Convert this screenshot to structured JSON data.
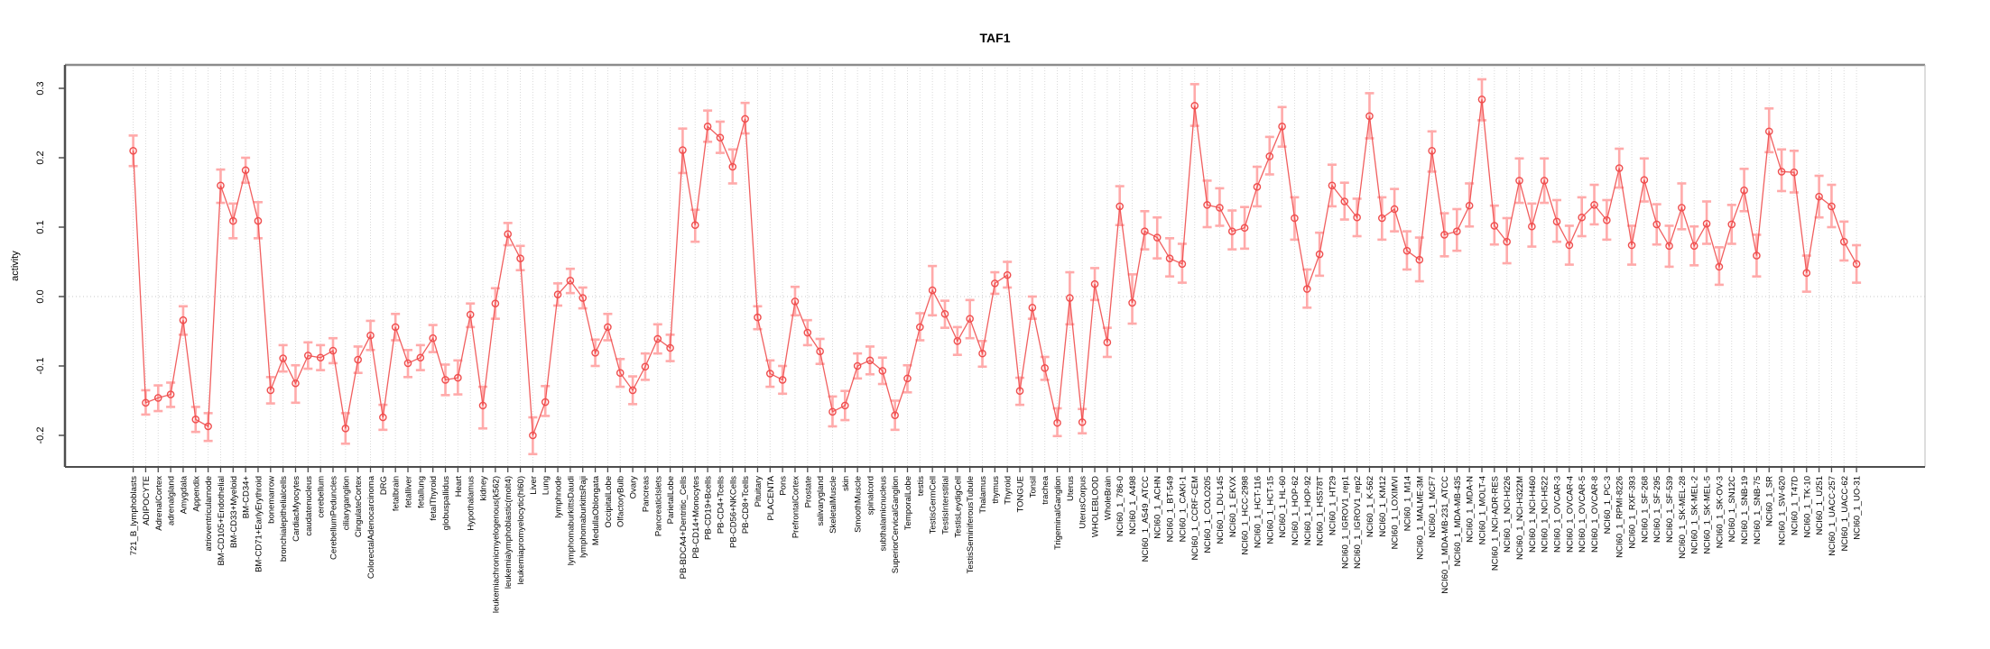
{
  "title": "TAF1",
  "ylabel": "activity",
  "colors": {
    "line": "#ef4e4e",
    "marker": "#ef4e4e",
    "error_bar": "#ffaaaa",
    "grid": "#d9d9d9",
    "zero_line": "#c9c9c9",
    "axis_dark": "#4d4d4d",
    "box_gray": "#8c8c8c",
    "label_text": "#000000"
  },
  "chart_data": {
    "type": "line",
    "title": "TAF1",
    "xlabel": "",
    "ylabel": "activity",
    "ylim": [
      -0.245,
      0.335
    ],
    "y_ticks": [
      0.3,
      0.2,
      0.1,
      0.0,
      -0.1,
      -0.2
    ],
    "y_tick_labels": [
      "0.3",
      "0.2",
      "0.1",
      "0.0",
      "-0.1",
      "-0.2"
    ],
    "grid": "vertical-per-category-plus-zero-line",
    "legend": "none",
    "marker": "open-circle",
    "error_bars": true,
    "categories": [
      "721_B_lymphoblasts",
      "ADIPOCYTE",
      "AdrenalCortex",
      "adrenalgland",
      "Amygdala",
      "Appendix",
      "atrioventricularnode",
      "BM-CD105+Endothelial",
      "BM-CD33+Myeloid",
      "BM-CD34+",
      "BM-CD71+EarlyErythroid",
      "bonemarrow",
      "bronchialepithelialcells",
      "CardiacMyocytes",
      "caudatenucleus",
      "cerebellum",
      "CerebellumPeduncles",
      "ciliaryganglion",
      "CingulateCortex",
      "ColorectalAdenocarcinoma",
      "DRG",
      "fetalbrain",
      "fetalliver",
      "fetallung",
      "fetalThyroid",
      "globuspallidus",
      "Heart",
      "Hypothalamus",
      "kidney",
      "leukemiachronicmyelogenous(k562)",
      "leukemialymphoblastic(molt4)",
      "leukemiapromyelocytic(hl60)",
      "Liver",
      "Lung",
      "lymphnode",
      "lymphomaburkittsDaudi",
      "lymphomaburkittsRaji",
      "MedullaOblongata",
      "OccipitalLobe",
      "OlfactoryBulb",
      "Ovary",
      "Pancreas",
      "PancreaticIslets",
      "ParietalLobe",
      "PB-BDCA4+Dentritic_Cells",
      "PB-CD14+Monocytes",
      "PB-CD19+Bcells",
      "PB-CD4+Tcells",
      "PB-CD56+NKCells",
      "PB-CD8+Tcells",
      "Pituitary",
      "PLACENTA",
      "Pons",
      "PrefrontalCortex",
      "Prostate",
      "salivarygland",
      "SkeletalMuscle",
      "skin",
      "SmoothMuscle",
      "spinalcord",
      "subthalamicnucleus",
      "SuperiorCervicalGanglion",
      "TemporalLobe",
      "testis",
      "TestisGermCell",
      "TestisInterstitial",
      "TestisLeydigCell",
      "TestisSeminiferousTubule",
      "Thalamus",
      "thymus",
      "Thyroid",
      "TONGUE",
      "Tonsil",
      "trachea",
      "TrigeminalGanglion",
      "Uterus",
      "UterusCorpus",
      "WHOLEBLOOD",
      "WholeBrain",
      "NCI60_1_786-0",
      "NCI60_1_A498",
      "NCI60_1_A549_ATCC",
      "NCI60_1_ACHN",
      "NCI60_1_BT-549",
      "NCI60_1_CAKI-1",
      "NCI60_1_CCRF-CEM",
      "NCI60_1_COLO205",
      "NCI60_1_DU-145",
      "NCI60_1_EKVX",
      "NCI60_1_HCC-2998",
      "NCI60_1_HCT-116",
      "NCI60_1_HCT-15",
      "NCI60_1_HL-60",
      "NCI60_1_HOP-62",
      "NCI60_1_HOP-92",
      "NCI60_1_HS578T",
      "NCI60_1_HT29",
      "NCI60_1_IGROV1_rep1",
      "NCI60_1_IGROV1_rep2",
      "NCI60_1_K-562",
      "NCI60_1_KM12",
      "NCI60_1_LOXIMVI",
      "NCI60_1_M14",
      "NCI60_1_MALME-3M",
      "NCI60_1_MCF7",
      "NCI60_1_MDA-MB-231_ATCC",
      "NCI60_1_MDA-MB-435",
      "NCI60_1_MDA-N",
      "NCI60_1_MOLT-4",
      "NCI60_1_NCI-ADR-RES",
      "NCI60_1_NCI-H226",
      "NCI60_1_NCI-H322M",
      "NCI60_1_NCI-H460",
      "NCI60_1_NCI-H522",
      "NCI60_1_OVCAR-3",
      "NCI60_1_OVCAR-4",
      "NCI60_1_OVCAR-5",
      "NCI60_1_OVCAR-8",
      "NCI60_1_PC-3",
      "NCI60_1_RPMI-8226",
      "NCI60_1_RXF-393",
      "NCI60_1_SF-268",
      "NCI60_1_SF-295",
      "NCI60_1_SF-539",
      "NCI60_1_SK-MEL-28",
      "NCI60_1_SK-MEL-2",
      "NCI60_1_SK-MEL-5",
      "NCI60_1_SK-OV-3",
      "NCI60_1_SN12C",
      "NCI60_1_SNB-19",
      "NCI60_1_SNB-75",
      "NCI60_1_SR",
      "NCI60_1_SW-620",
      "NCI60_1_T47D",
      "NCI60_1_TK-10",
      "NCI60_1_U251",
      "NCI60_1_UACC-257",
      "NCI60_1_UACC-62",
      "NCI60_1_UO-31"
    ],
    "values": [
      0.21,
      -0.153,
      -0.146,
      -0.141,
      -0.034,
      -0.177,
      -0.187,
      0.16,
      0.109,
      0.182,
      0.109,
      -0.135,
      -0.089,
      -0.125,
      -0.085,
      -0.088,
      -0.078,
      -0.19,
      -0.091,
      -0.056,
      -0.174,
      -0.044,
      -0.096,
      -0.088,
      -0.06,
      -0.12,
      -0.117,
      -0.026,
      -0.157,
      -0.01,
      0.09,
      0.055,
      -0.2,
      -0.152,
      0.003,
      0.023,
      -0.002,
      -0.081,
      -0.044,
      -0.11,
      -0.135,
      -0.101,
      -0.061,
      -0.074,
      0.211,
      0.103,
      0.245,
      0.229,
      0.187,
      0.256,
      -0.03,
      -0.111,
      -0.12,
      -0.007,
      -0.052,
      -0.079,
      -0.166,
      -0.157,
      -0.1,
      -0.092,
      -0.107,
      -0.171,
      -0.118,
      -0.044,
      0.009,
      -0.025,
      -0.064,
      -0.032,
      -0.082,
      0.019,
      0.031,
      -0.136,
      -0.016,
      -0.103,
      -0.182,
      -0.002,
      -0.181,
      0.018,
      -0.066,
      0.13,
      -0.009,
      0.094,
      0.085,
      0.055,
      0.047,
      0.275,
      0.132,
      0.128,
      0.094,
      0.099,
      0.158,
      0.202,
      0.245,
      0.113,
      0.011,
      0.061,
      0.16,
      0.137,
      0.114,
      0.26,
      0.113,
      0.126,
      0.066,
      0.053,
      0.21,
      0.089,
      0.094,
      0.131,
      0.284,
      0.102,
      0.079,
      0.167,
      0.101,
      0.167,
      0.108,
      0.074,
      0.114,
      0.132,
      0.11,
      0.185,
      0.074,
      0.168,
      0.104,
      0.073,
      0.128,
      0.073,
      0.105,
      0.043,
      0.104,
      0.153,
      0.059,
      0.238,
      0.18,
      0.179,
      0.034,
      0.144,
      0.13,
      0.079,
      0.047
    ],
    "err_low": [
      0.188,
      -0.17,
      -0.165,
      -0.159,
      -0.055,
      -0.195,
      -0.208,
      0.135,
      0.084,
      0.164,
      0.084,
      -0.154,
      -0.108,
      -0.153,
      -0.104,
      -0.106,
      -0.096,
      -0.212,
      -0.11,
      -0.077,
      -0.192,
      -0.063,
      -0.116,
      -0.106,
      -0.08,
      -0.142,
      -0.141,
      -0.044,
      -0.19,
      -0.032,
      0.074,
      0.038,
      -0.227,
      -0.172,
      -0.013,
      0.005,
      -0.017,
      -0.1,
      -0.063,
      -0.13,
      -0.155,
      -0.12,
      -0.082,
      -0.093,
      0.178,
      0.079,
      0.223,
      0.207,
      0.163,
      0.235,
      -0.047,
      -0.13,
      -0.14,
      -0.027,
      -0.07,
      -0.097,
      -0.187,
      -0.178,
      -0.118,
      -0.112,
      -0.126,
      -0.192,
      -0.138,
      -0.063,
      -0.027,
      -0.045,
      -0.084,
      -0.06,
      -0.101,
      0.004,
      0.013,
      -0.156,
      -0.032,
      -0.12,
      -0.201,
      -0.04,
      -0.197,
      -0.005,
      -0.087,
      0.103,
      -0.039,
      0.068,
      0.055,
      0.029,
      0.02,
      0.246,
      0.1,
      0.102,
      0.068,
      0.069,
      0.13,
      0.176,
      0.216,
      0.082,
      -0.016,
      0.03,
      0.13,
      0.111,
      0.087,
      0.228,
      0.082,
      0.094,
      0.039,
      0.022,
      0.18,
      0.058,
      0.066,
      0.101,
      0.254,
      0.075,
      0.048,
      0.135,
      0.072,
      0.135,
      0.079,
      0.046,
      0.087,
      0.104,
      0.082,
      0.157,
      0.046,
      0.137,
      0.075,
      0.043,
      0.097,
      0.045,
      0.076,
      0.017,
      0.076,
      0.123,
      0.029,
      0.208,
      0.152,
      0.15,
      0.007,
      0.114,
      0.1,
      0.052,
      0.02
    ],
    "err_high": [
      0.232,
      -0.135,
      -0.128,
      -0.124,
      -0.014,
      -0.159,
      -0.168,
      0.183,
      0.134,
      0.2,
      0.136,
      -0.116,
      -0.07,
      -0.099,
      -0.066,
      -0.07,
      -0.06,
      -0.168,
      -0.072,
      -0.035,
      -0.156,
      -0.025,
      -0.077,
      -0.07,
      -0.041,
      -0.098,
      -0.092,
      -0.01,
      -0.13,
      0.012,
      0.106,
      0.073,
      -0.174,
      -0.129,
      0.019,
      0.04,
      0.013,
      -0.062,
      -0.025,
      -0.09,
      -0.115,
      -0.082,
      -0.04,
      -0.055,
      0.242,
      0.125,
      0.268,
      0.252,
      0.212,
      0.279,
      -0.014,
      -0.092,
      -0.1,
      0.014,
      -0.034,
      -0.061,
      -0.144,
      -0.136,
      -0.082,
      -0.072,
      -0.088,
      -0.15,
      -0.099,
      -0.024,
      0.044,
      -0.006,
      -0.044,
      -0.005,
      -0.064,
      0.035,
      0.05,
      -0.117,
      0.0,
      -0.087,
      -0.161,
      0.035,
      -0.162,
      0.041,
      -0.045,
      0.159,
      0.032,
      0.123,
      0.114,
      0.084,
      0.076,
      0.306,
      0.167,
      0.156,
      0.124,
      0.129,
      0.187,
      0.23,
      0.273,
      0.143,
      0.039,
      0.092,
      0.19,
      0.164,
      0.141,
      0.293,
      0.143,
      0.155,
      0.094,
      0.085,
      0.238,
      0.12,
      0.126,
      0.163,
      0.313,
      0.131,
      0.113,
      0.199,
      0.134,
      0.199,
      0.139,
      0.102,
      0.143,
      0.161,
      0.139,
      0.213,
      0.102,
      0.199,
      0.133,
      0.102,
      0.163,
      0.101,
      0.137,
      0.071,
      0.132,
      0.184,
      0.089,
      0.271,
      0.212,
      0.21,
      0.059,
      0.174,
      0.161,
      0.108,
      0.074
    ]
  }
}
